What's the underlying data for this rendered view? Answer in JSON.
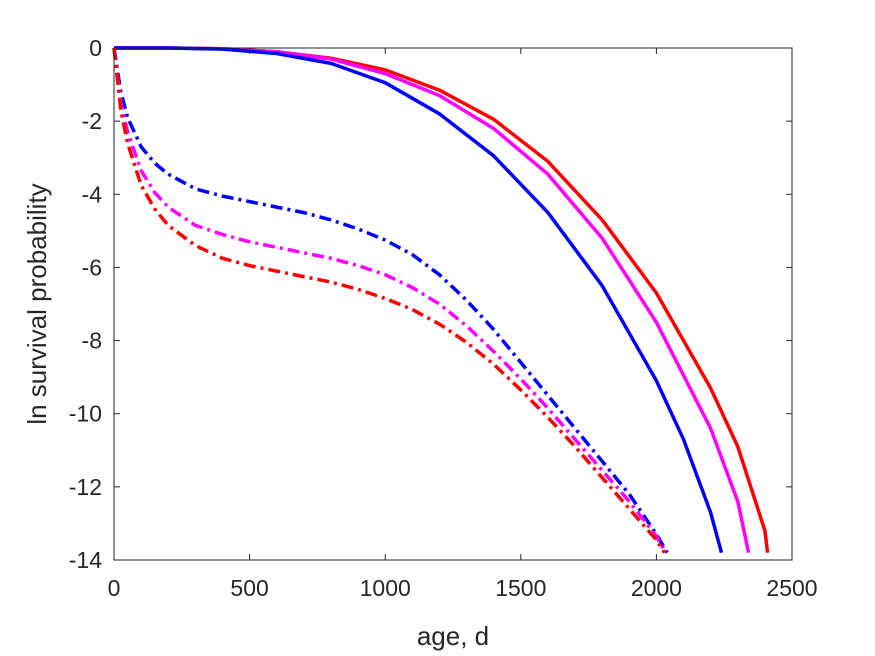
{
  "chart_data": {
    "type": "line",
    "title": "",
    "xlabel": "age, d",
    "ylabel": "ln survival probability",
    "xlim": [
      0,
      2500
    ],
    "ylim": [
      -14,
      0
    ],
    "xticks": [
      0,
      500,
      1000,
      1500,
      2000,
      2500
    ],
    "yticks": [
      0,
      -2,
      -4,
      -6,
      -8,
      -10,
      -12,
      -14
    ],
    "grid": false,
    "legend": "none",
    "series": [
      {
        "color": "#ff0000",
        "style": "solid",
        "x": [
          0,
          200,
          400,
          600,
          800,
          1000,
          1200,
          1400,
          1600,
          1800,
          2000,
          2200,
          2300,
          2400,
          2410
        ],
        "y": [
          0,
          0,
          -0.02,
          -0.1,
          -0.28,
          -0.6,
          -1.15,
          -1.95,
          -3.1,
          -4.7,
          -6.7,
          -9.3,
          -10.9,
          -13.2,
          -13.8
        ]
      },
      {
        "color": "#ff00ff",
        "style": "solid",
        "x": [
          0,
          200,
          400,
          600,
          800,
          1000,
          1200,
          1400,
          1600,
          1800,
          2000,
          2200,
          2300,
          2340
        ],
        "y": [
          0,
          0,
          -0.02,
          -0.1,
          -0.3,
          -0.7,
          -1.3,
          -2.2,
          -3.45,
          -5.2,
          -7.5,
          -10.4,
          -12.4,
          -13.8
        ]
      },
      {
        "color": "#0000ff",
        "style": "solid",
        "x": [
          0,
          200,
          400,
          600,
          800,
          1000,
          1200,
          1400,
          1600,
          1800,
          2000,
          2100,
          2200,
          2240
        ],
        "y": [
          0,
          0,
          -0.03,
          -0.15,
          -0.42,
          -0.95,
          -1.8,
          -2.95,
          -4.5,
          -6.5,
          -9.1,
          -10.7,
          -12.7,
          -13.8
        ]
      },
      {
        "color": "#0000ff",
        "style": "dashdot",
        "x": [
          0,
          25,
          50,
          100,
          150,
          200,
          300,
          400,
          500,
          600,
          700,
          800,
          900,
          1000,
          1100,
          1200,
          1300,
          1400,
          1500,
          1600,
          1700,
          1800,
          1900,
          2000,
          2040
        ],
        "y": [
          0,
          -1.2,
          -1.9,
          -2.7,
          -3.15,
          -3.45,
          -3.85,
          -4.05,
          -4.2,
          -4.35,
          -4.5,
          -4.7,
          -4.95,
          -5.25,
          -5.65,
          -6.2,
          -6.9,
          -7.7,
          -8.6,
          -9.5,
          -10.4,
          -11.3,
          -12.2,
          -13.3,
          -13.8
        ]
      },
      {
        "color": "#ff00ff",
        "style": "dashdot",
        "x": [
          0,
          25,
          50,
          100,
          150,
          200,
          300,
          400,
          500,
          600,
          700,
          800,
          900,
          1000,
          1100,
          1200,
          1300,
          1400,
          1500,
          1600,
          1700,
          1800,
          1900,
          2000,
          2035
        ],
        "y": [
          0,
          -1.5,
          -2.3,
          -3.35,
          -3.95,
          -4.35,
          -4.85,
          -5.1,
          -5.3,
          -5.45,
          -5.6,
          -5.75,
          -5.95,
          -6.2,
          -6.55,
          -7.0,
          -7.6,
          -8.3,
          -9.05,
          -9.85,
          -10.7,
          -11.55,
          -12.4,
          -13.35,
          -13.8
        ]
      },
      {
        "color": "#ff0000",
        "style": "dashdot",
        "x": [
          0,
          25,
          50,
          100,
          150,
          200,
          300,
          400,
          500,
          600,
          700,
          800,
          900,
          1000,
          1100,
          1200,
          1300,
          1400,
          1500,
          1600,
          1700,
          1800,
          1900,
          2000,
          2030
        ],
        "y": [
          0,
          -1.7,
          -2.6,
          -3.75,
          -4.4,
          -4.85,
          -5.4,
          -5.75,
          -5.95,
          -6.1,
          -6.25,
          -6.4,
          -6.6,
          -6.85,
          -7.15,
          -7.55,
          -8.05,
          -8.65,
          -9.35,
          -10.1,
          -10.9,
          -11.75,
          -12.6,
          -13.45,
          -13.8
        ]
      }
    ]
  }
}
